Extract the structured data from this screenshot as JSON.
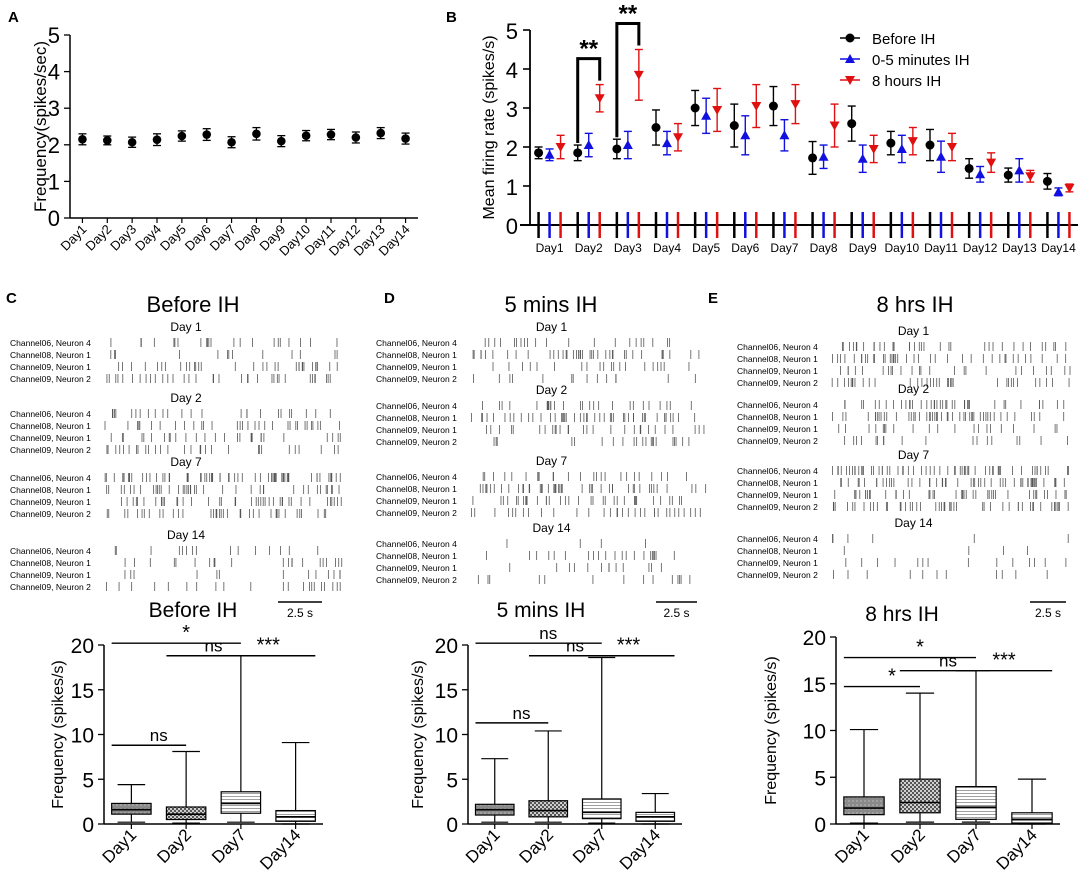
{
  "panel_letters": {
    "a": "A",
    "b": "B",
    "c": "C",
    "d": "D",
    "e": "E"
  },
  "chart_data": [
    {
      "id": "A",
      "type": "scatter",
      "title": "",
      "xlabel": "",
      "ylabel": "Frequency(spikes/sec)",
      "ylim": [
        0,
        5
      ],
      "yticks": [
        0,
        1,
        2,
        3,
        4,
        5
      ],
      "categories": [
        "Day1",
        "Day2",
        "Day3",
        "Day4",
        "Day5",
        "Day6",
        "Day7",
        "Day8",
        "Day9",
        "Day10",
        "Day11",
        "Day12",
        "Day13",
        "Day14"
      ],
      "values": [
        2.15,
        2.12,
        2.07,
        2.14,
        2.24,
        2.28,
        2.07,
        2.3,
        2.1,
        2.25,
        2.28,
        2.2,
        2.32,
        2.17
      ],
      "errors": [
        0.15,
        0.12,
        0.14,
        0.16,
        0.14,
        0.16,
        0.15,
        0.17,
        0.15,
        0.14,
        0.14,
        0.15,
        0.15,
        0.15
      ],
      "color": "#000000"
    },
    {
      "id": "B",
      "type": "scatter",
      "title": "",
      "xlabel": "",
      "ylabel": "Mean firing rate (spikes/s)",
      "ylim": [
        0,
        5
      ],
      "yticks": [
        0,
        1,
        2,
        3,
        4,
        5
      ],
      "categories": [
        "Day1",
        "Day2",
        "Day3",
        "Day4",
        "Day5",
        "Day6",
        "Day7",
        "Day8",
        "Day9",
        "Day10",
        "Day11",
        "Day12",
        "Day13",
        "Day14"
      ],
      "legend_position": "top-right",
      "series": [
        {
          "name": "Before IH",
          "color": "#000000",
          "marker": "circle",
          "values": [
            1.85,
            1.85,
            1.95,
            2.5,
            3.0,
            2.55,
            3.05,
            1.72,
            2.6,
            2.1,
            2.05,
            1.45,
            1.28,
            1.12
          ],
          "errors": [
            0.15,
            0.2,
            0.25,
            0.45,
            0.45,
            0.55,
            0.5,
            0.42,
            0.45,
            0.3,
            0.4,
            0.25,
            0.18,
            0.2
          ]
        },
        {
          "name": "0-5 minutes IH",
          "color": "#1010e0",
          "marker": "triangle-up",
          "values": [
            1.8,
            2.05,
            2.05,
            2.1,
            2.8,
            2.3,
            2.3,
            1.75,
            1.7,
            1.95,
            1.75,
            1.3,
            1.4,
            0.85
          ],
          "errors": [
            0.15,
            0.3,
            0.35,
            0.3,
            0.45,
            0.5,
            0.4,
            0.3,
            0.35,
            0.35,
            0.4,
            0.2,
            0.3,
            0.1
          ]
        },
        {
          "name": "8 hours IH",
          "color": "#e01010",
          "marker": "triangle-down",
          "values": [
            2.0,
            3.25,
            3.85,
            2.25,
            2.95,
            3.05,
            3.1,
            2.55,
            1.95,
            2.15,
            2.0,
            1.6,
            1.25,
            0.95
          ],
          "errors": [
            0.3,
            0.35,
            0.65,
            0.35,
            0.55,
            0.55,
            0.5,
            0.55,
            0.35,
            0.35,
            0.35,
            0.25,
            0.15,
            0.1
          ]
        }
      ],
      "annotations": [
        {
          "text": "**",
          "category": "Day2"
        },
        {
          "text": "**",
          "category": "Day3"
        }
      ]
    },
    {
      "id": "C-box",
      "type": "box",
      "title": "Before IH",
      "xlabel": "",
      "ylabel": "Frequency (spikes/s)",
      "ylim": [
        0,
        20
      ],
      "yticks": [
        0,
        5,
        10,
        15,
        20
      ],
      "categories": [
        "Day1",
        "Day2",
        "Day7",
        "Day14"
      ],
      "boxes": [
        {
          "min": 0.2,
          "q1": 1.1,
          "median": 1.6,
          "q3": 2.3,
          "max": 4.4,
          "fill": "gray"
        },
        {
          "min": 0.1,
          "q1": 0.5,
          "median": 1.1,
          "q3": 1.9,
          "max": 8.1,
          "fill": "checker"
        },
        {
          "min": 0.2,
          "q1": 1.2,
          "median": 2.3,
          "q3": 3.6,
          "max": 18.8,
          "fill": "hlines"
        },
        {
          "min": 0.0,
          "q1": 0.3,
          "median": 0.8,
          "q3": 1.5,
          "max": 9.1,
          "fill": "hlines"
        }
      ],
      "significance": [
        {
          "text": "ns",
          "from": "Day1",
          "to": "Day2",
          "y": 8.8
        },
        {
          "text": "*",
          "from": "Day1",
          "to": "Day7",
          "y": 20.2
        },
        {
          "text": "ns",
          "from": "Day2",
          "to": "Day7",
          "y": 18.8
        },
        {
          "text": "***",
          "from": "Day7",
          "to": "Day14",
          "y": 18.8
        }
      ],
      "scale_bar": "2.5 s"
    },
    {
      "id": "D-box",
      "type": "box",
      "title": "5 mins IH",
      "xlabel": "",
      "ylabel": "Frequency (spikes/s)",
      "ylim": [
        0,
        20
      ],
      "yticks": [
        0,
        5,
        10,
        15,
        20
      ],
      "categories": [
        "Day1",
        "Day2",
        "Day7",
        "Day14"
      ],
      "boxes": [
        {
          "min": 0.2,
          "q1": 1.0,
          "median": 1.6,
          "q3": 2.2,
          "max": 7.3,
          "fill": "gray"
        },
        {
          "min": 0.2,
          "q1": 0.8,
          "median": 1.5,
          "q3": 2.6,
          "max": 10.4,
          "fill": "checker"
        },
        {
          "min": 0.1,
          "q1": 0.6,
          "median": 1.3,
          "q3": 2.8,
          "max": 18.6,
          "fill": "hlines"
        },
        {
          "min": 0.0,
          "q1": 0.3,
          "median": 0.8,
          "q3": 1.3,
          "max": 3.4,
          "fill": "hlines"
        }
      ],
      "significance": [
        {
          "text": "ns",
          "from": "Day1",
          "to": "Day2",
          "y": 11.3
        },
        {
          "text": "ns",
          "from": "Day1",
          "to": "Day7",
          "y": 20.2
        },
        {
          "text": "ns",
          "from": "Day2",
          "to": "Day7",
          "y": 18.8
        },
        {
          "text": "***",
          "from": "Day7",
          "to": "Day14",
          "y": 18.8
        }
      ],
      "scale_bar": "2.5 s"
    },
    {
      "id": "E-box",
      "type": "box",
      "title": "8 hrs IH",
      "xlabel": "",
      "ylabel": "Frequency (spikes/s)",
      "ylim": [
        0,
        20
      ],
      "yticks": [
        0,
        5,
        10,
        15,
        20
      ],
      "categories": [
        "Day1",
        "Day2",
        "Day7",
        "Day14"
      ],
      "boxes": [
        {
          "min": 0.1,
          "q1": 1.0,
          "median": 1.7,
          "q3": 2.9,
          "max": 10.1,
          "fill": "gray"
        },
        {
          "min": 0.2,
          "q1": 1.2,
          "median": 2.3,
          "q3": 4.8,
          "max": 14.0,
          "fill": "checker"
        },
        {
          "min": 0.2,
          "q1": 0.5,
          "median": 1.8,
          "q3": 4.0,
          "max": 16.4,
          "fill": "hlines"
        },
        {
          "min": 0.0,
          "q1": 0.1,
          "median": 0.5,
          "q3": 1.2,
          "max": 4.8,
          "fill": "hlines"
        }
      ],
      "significance": [
        {
          "text": "*",
          "from": "Day1",
          "to": "Day2",
          "y": 14.7
        },
        {
          "text": "*",
          "from": "Day1",
          "to": "Day7",
          "y": 17.8
        },
        {
          "text": "ns",
          "from": "Day2",
          "to": "Day7",
          "y": 16.4
        },
        {
          "text": "***",
          "from": "Day7",
          "to": "Day14",
          "y": 16.4
        }
      ],
      "scale_bar": "2.5 s"
    }
  ],
  "rasters": [
    {
      "id": "C",
      "title": "Before IH",
      "scale_label": "2.5 s",
      "groups": [
        {
          "day": "Day 1",
          "rows": [
            "Channel06, Neuron 4",
            "Channel08, Neuron 1",
            "Channel09, Neuron 1",
            "Channel09, Neuron 2"
          ],
          "density": [
            0.32,
            0.18,
            0.45,
            0.5
          ]
        },
        {
          "day": "Day 2",
          "rows": [
            "Channel06, Neuron 4",
            "Channel08, Neuron 1",
            "Channel09, Neuron 1",
            "Channel09, Neuron 2"
          ],
          "density": [
            0.35,
            0.45,
            0.4,
            0.42
          ]
        },
        {
          "day": "Day 7",
          "rows": [
            "Channel06, Neuron 4",
            "Channel08, Neuron 1",
            "Channel09, Neuron 1",
            "Channel09, Neuron 2"
          ],
          "density": [
            0.9,
            0.55,
            0.6,
            0.55
          ]
        },
        {
          "day": "Day 14",
          "rows": [
            "Channel06, Neuron 4",
            "Channel08, Neuron 1",
            "Channel09, Neuron 1",
            "Channel09, Neuron 2"
          ],
          "density": [
            0.22,
            0.3,
            0.18,
            0.3
          ]
        }
      ]
    },
    {
      "id": "D",
      "title": "5 mins IH",
      "scale_label": "2.5 s",
      "groups": [
        {
          "day": "Day 1",
          "rows": [
            "Channel06, Neuron 4",
            "Channel08, Neuron 1",
            "Channel09, Neuron 1",
            "Channel09, Neuron 2"
          ],
          "density": [
            0.3,
            0.55,
            0.28,
            0.2
          ]
        },
        {
          "day": "Day 2",
          "rows": [
            "Channel06, Neuron 4",
            "Channel08, Neuron 1",
            "Channel09, Neuron 1",
            "Channel09, Neuron 2"
          ],
          "density": [
            0.38,
            0.65,
            0.4,
            0.3
          ]
        },
        {
          "day": "Day 7",
          "rows": [
            "Channel06, Neuron 4",
            "Channel08, Neuron 1",
            "Channel09, Neuron 1",
            "Channel09, Neuron 2"
          ],
          "density": [
            0.35,
            0.65,
            0.5,
            0.45
          ]
        },
        {
          "day": "Day 14",
          "rows": [
            "Channel06, Neuron 4",
            "Channel08, Neuron 1",
            "Channel09, Neuron 1",
            "Channel09, Neuron 2"
          ],
          "density": [
            0.05,
            0.3,
            0.18,
            0.2
          ]
        }
      ]
    },
    {
      "id": "E",
      "title": "8 hrs IH",
      "scale_label": "2.5 s",
      "groups": [
        {
          "day": "Day 1",
          "rows": [
            "Channel06, Neuron 4",
            "Channel08, Neuron 1",
            "Channel09, Neuron 1",
            "Channel09, Neuron 2"
          ],
          "density": [
            0.5,
            0.55,
            0.35,
            0.5
          ]
        },
        {
          "day": "Day 2",
          "rows": [
            "Channel06, Neuron 4",
            "Channel08, Neuron 1",
            "Channel09, Neuron 1",
            "Channel09, Neuron 2"
          ],
          "density": [
            0.55,
            0.7,
            0.3,
            0.25
          ]
        },
        {
          "day": "Day 7",
          "rows": [
            "Channel06, Neuron 4",
            "Channel08, Neuron 1",
            "Channel09, Neuron 1",
            "Channel09, Neuron 2"
          ],
          "density": [
            0.85,
            0.75,
            0.6,
            0.7
          ]
        },
        {
          "day": "Day 14",
          "rows": [
            "Channel06, Neuron 4",
            "Channel08, Neuron 1",
            "Channel09, Neuron 1",
            "Channel09, Neuron 2"
          ],
          "density": [
            0.08,
            0.05,
            0.2,
            0.15
          ]
        }
      ]
    }
  ]
}
